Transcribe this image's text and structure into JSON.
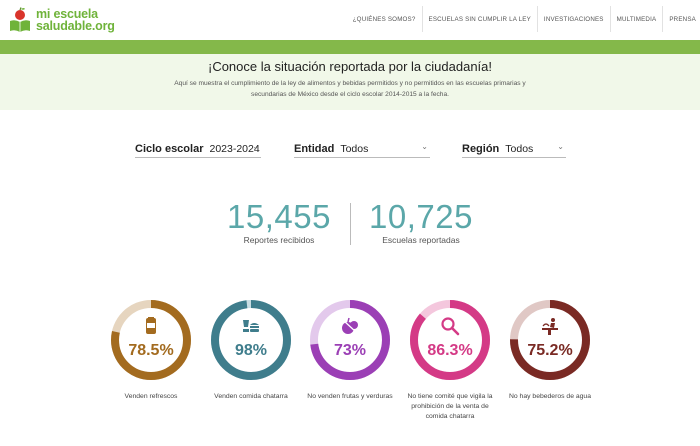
{
  "logo": {
    "line1": "mi escuela",
    "line2": "saludable.org"
  },
  "nav": [
    {
      "label": "¿QUIÉNES SOMOS?"
    },
    {
      "label": "ESCUELAS SIN CUMPLIR LA LEY"
    },
    {
      "label": "INVESTIGACIONES"
    },
    {
      "label": "MULTIMEDIA"
    },
    {
      "label": "PRENSA"
    }
  ],
  "intro": {
    "title": "¡Conoce la situación reportada por la ciudadanía!",
    "text": "Aquí se muestra el cumplimiento de la ley de alimentos y bebidas permitidos y no permitidos en las escuelas primarias y secundarias de México desde el ciclo escolar 2014-2015 a la fecha."
  },
  "filters": {
    "ciclo": {
      "label": "Ciclo escolar",
      "value": "2023-2024"
    },
    "entidad": {
      "label": "Entidad",
      "value": "Todos"
    },
    "region": {
      "label": "Región",
      "value": "Todos"
    }
  },
  "stats": {
    "reportes": {
      "value": "15,455",
      "label": "Reportes recibidos"
    },
    "escuelas": {
      "value": "10,725",
      "label": "Escuelas reportadas"
    }
  },
  "indicators": [
    {
      "value_text": "78.5%",
      "percent": 78.5,
      "label": "Venden refrescos",
      "icon": "soda-can-icon",
      "color": "#a36b1f",
      "track": "#e6d5bf"
    },
    {
      "value_text": "98%",
      "percent": 98,
      "label": "Venden comida chatarra",
      "icon": "junk-food-icon",
      "color": "#3f7d8c",
      "track": "#c9dde2"
    },
    {
      "value_text": "73%",
      "percent": 73,
      "label": "No venden frutas y verduras",
      "icon": "fruit-icon",
      "color": "#9b3fb5",
      "track": "#e3c9ec"
    },
    {
      "value_text": "86.3%",
      "percent": 86.3,
      "label": "No tiene comité que vigila la prohibición de la venta de comida chatarra",
      "icon": "magnifier-icon",
      "color": "#d43a86",
      "track": "#f4c7dd"
    },
    {
      "value_text": "75.2%",
      "percent": 75.2,
      "label": "No hay bebederos de agua",
      "icon": "water-fountain-icon",
      "color": "#7a2a24",
      "track": "#e0c8c5"
    }
  ]
}
